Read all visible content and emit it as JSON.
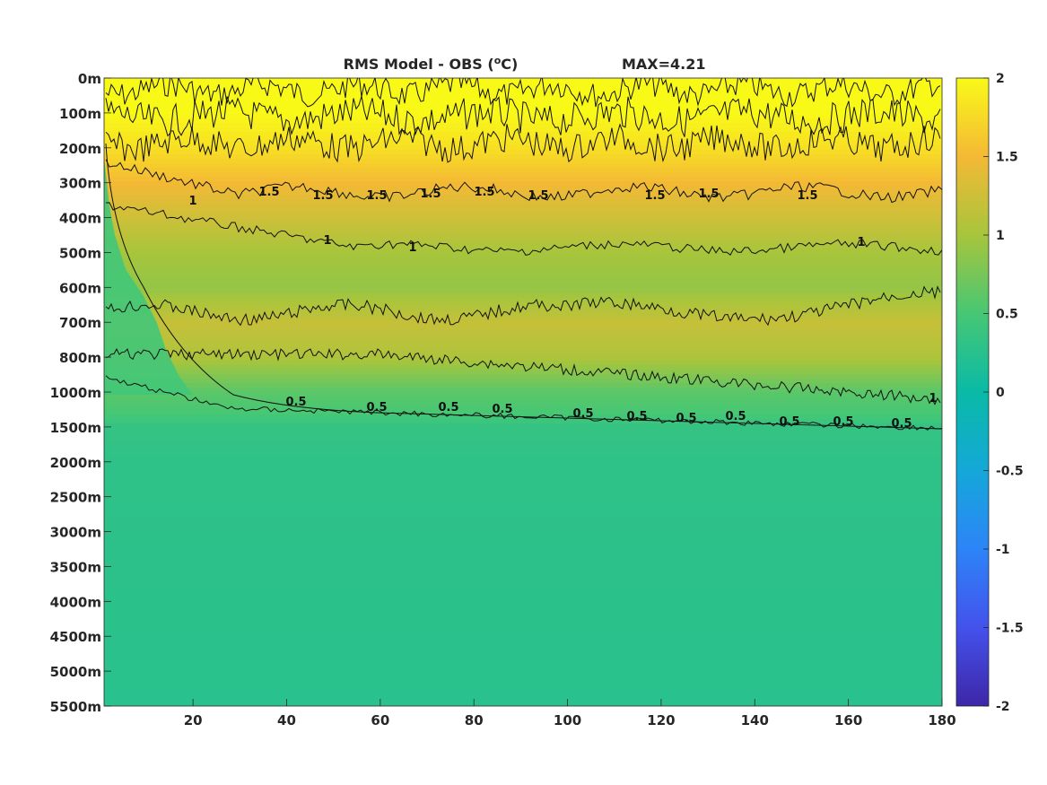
{
  "chart_data": {
    "type": "heatmap",
    "title": "RMS Model - OBS",
    "title_unit_letter": "C",
    "title_unit_superscript": "o",
    "max_label": "MAX=4.21",
    "x": {
      "ticks": [
        20,
        40,
        60,
        80,
        100,
        120,
        140,
        160,
        180
      ],
      "range": [
        1,
        180
      ]
    },
    "y": {
      "ticks": [
        "0m",
        "100m",
        "200m",
        "300m",
        "400m",
        "500m",
        "600m",
        "700m",
        "800m",
        "1000m",
        "1500m",
        "2000m",
        "2500m",
        "3000m",
        "3500m",
        "4000m",
        "4500m",
        "5000m",
        "5500m"
      ]
    },
    "colorbar": {
      "ticks": [
        "2",
        "1.5",
        "1",
        "0.5",
        "0",
        "-0.5",
        "-1",
        "-1.5",
        "-2"
      ],
      "range": [
        -2,
        2
      ],
      "colormap": "parula"
    },
    "depth_profile": [
      [
        0,
        2.0
      ],
      [
        1,
        2.0
      ],
      [
        2,
        1.8
      ],
      [
        3,
        1.5
      ],
      [
        4,
        1.25
      ],
      [
        5,
        1.0
      ],
      [
        6,
        0.9
      ],
      [
        7,
        1.2
      ],
      [
        8,
        1.05
      ],
      [
        9,
        0.6
      ],
      [
        9.6,
        0.5
      ],
      [
        10,
        0.35
      ],
      [
        11,
        0.3
      ],
      [
        18,
        0.25
      ]
    ],
    "contours": [
      {
        "level": 1.5,
        "labels": [
          "1.5",
          "1.5",
          "1.5",
          "1.5",
          "1.5",
          "1.5",
          "1.5",
          "1.5",
          "1.5"
        ]
      },
      {
        "level": 1,
        "labels": [
          "1",
          "1",
          "1",
          "1",
          "1"
        ]
      },
      {
        "level": 0.5,
        "labels": [
          "0.5",
          "0.5",
          "0.5",
          "0.5",
          "0.5",
          "0.5",
          "0.5",
          "0.5",
          "0.5",
          "0.5",
          "0.5"
        ]
      }
    ]
  }
}
